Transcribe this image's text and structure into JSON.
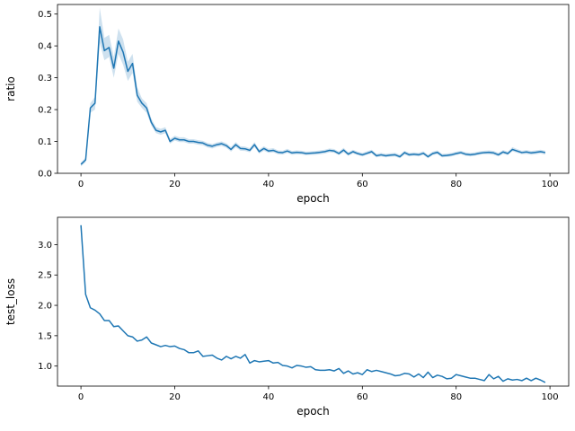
{
  "chart_data": [
    {
      "type": "line",
      "xlabel": "epoch",
      "ylabel": "ratio",
      "xlim": [
        -5,
        104
      ],
      "ylim": [
        0,
        0.53
      ],
      "xticks": [
        0,
        20,
        40,
        60,
        80,
        100
      ],
      "xtick_labels": [
        "0",
        "20",
        "40",
        "60",
        "80",
        "100"
      ],
      "yticks": [
        0.0,
        0.1,
        0.2,
        0.3,
        0.4,
        0.5
      ],
      "ytick_labels": [
        "0.0",
        "0.1",
        "0.2",
        "0.3",
        "0.4",
        "0.5"
      ],
      "grid": false,
      "confidence_band": true,
      "color": "#1f77b4",
      "band_color": "#1f77b4",
      "x": [
        0,
        1,
        2,
        3,
        4,
        5,
        6,
        7,
        8,
        9,
        10,
        11,
        12,
        13,
        14,
        15,
        16,
        17,
        18,
        19,
        20,
        21,
        22,
        23,
        24,
        25,
        26,
        27,
        28,
        29,
        30,
        31,
        32,
        33,
        34,
        35,
        36,
        37,
        38,
        39,
        40,
        41,
        42,
        43,
        44,
        45,
        46,
        47,
        48,
        49,
        50,
        51,
        52,
        53,
        54,
        55,
        56,
        57,
        58,
        59,
        60,
        61,
        62,
        63,
        64,
        65,
        66,
        67,
        68,
        69,
        70,
        71,
        72,
        73,
        74,
        75,
        76,
        77,
        78,
        79,
        80,
        81,
        82,
        83,
        84,
        85,
        86,
        87,
        88,
        89,
        90,
        91,
        92,
        93,
        94,
        95,
        96,
        97,
        98,
        99
      ],
      "values": [
        0.028,
        0.042,
        0.205,
        0.22,
        0.46,
        0.385,
        0.395,
        0.33,
        0.415,
        0.38,
        0.32,
        0.345,
        0.245,
        0.22,
        0.205,
        0.16,
        0.135,
        0.13,
        0.135,
        0.1,
        0.11,
        0.105,
        0.105,
        0.1,
        0.1,
        0.097,
        0.095,
        0.088,
        0.085,
        0.09,
        0.093,
        0.087,
        0.075,
        0.09,
        0.078,
        0.077,
        0.072,
        0.09,
        0.068,
        0.078,
        0.07,
        0.072,
        0.066,
        0.065,
        0.07,
        0.064,
        0.066,
        0.065,
        0.062,
        0.063,
        0.064,
        0.066,
        0.068,
        0.072,
        0.07,
        0.062,
        0.073,
        0.06,
        0.068,
        0.062,
        0.058,
        0.063,
        0.068,
        0.055,
        0.058,
        0.055,
        0.057,
        0.058,
        0.052,
        0.065,
        0.058,
        0.06,
        0.058,
        0.063,
        0.052,
        0.062,
        0.066,
        0.055,
        0.056,
        0.058,
        0.062,
        0.065,
        0.06,
        0.058,
        0.06,
        0.063,
        0.065,
        0.066,
        0.064,
        0.058,
        0.067,
        0.062,
        0.075,
        0.07,
        0.065,
        0.067,
        0.064,
        0.066,
        0.068,
        0.065
      ],
      "lower": [
        0.022,
        0.035,
        0.19,
        0.2,
        0.41,
        0.355,
        0.365,
        0.3,
        0.375,
        0.34,
        0.29,
        0.315,
        0.225,
        0.205,
        0.19,
        0.15,
        0.126,
        0.121,
        0.126,
        0.093,
        0.103,
        0.098,
        0.098,
        0.093,
        0.093,
        0.09,
        0.088,
        0.081,
        0.078,
        0.083,
        0.086,
        0.08,
        0.068,
        0.082,
        0.071,
        0.07,
        0.066,
        0.082,
        0.062,
        0.071,
        0.064,
        0.066,
        0.06,
        0.059,
        0.064,
        0.058,
        0.06,
        0.059,
        0.057,
        0.058,
        0.058,
        0.06,
        0.062,
        0.066,
        0.064,
        0.057,
        0.066,
        0.055,
        0.062,
        0.057,
        0.053,
        0.058,
        0.062,
        0.05,
        0.053,
        0.05,
        0.052,
        0.053,
        0.047,
        0.059,
        0.053,
        0.055,
        0.053,
        0.058,
        0.047,
        0.057,
        0.06,
        0.05,
        0.051,
        0.053,
        0.057,
        0.06,
        0.055,
        0.053,
        0.055,
        0.058,
        0.06,
        0.06,
        0.058,
        0.053,
        0.061,
        0.057,
        0.069,
        0.064,
        0.06,
        0.061,
        0.058,
        0.06,
        0.062,
        0.059
      ],
      "upper": [
        0.034,
        0.049,
        0.22,
        0.24,
        0.52,
        0.425,
        0.435,
        0.365,
        0.455,
        0.42,
        0.35,
        0.375,
        0.27,
        0.235,
        0.22,
        0.172,
        0.145,
        0.14,
        0.145,
        0.108,
        0.118,
        0.113,
        0.113,
        0.107,
        0.107,
        0.104,
        0.102,
        0.095,
        0.092,
        0.097,
        0.1,
        0.094,
        0.082,
        0.098,
        0.085,
        0.084,
        0.079,
        0.098,
        0.075,
        0.085,
        0.077,
        0.079,
        0.072,
        0.071,
        0.077,
        0.07,
        0.072,
        0.071,
        0.068,
        0.069,
        0.07,
        0.072,
        0.074,
        0.078,
        0.076,
        0.068,
        0.08,
        0.066,
        0.074,
        0.068,
        0.064,
        0.069,
        0.074,
        0.061,
        0.064,
        0.061,
        0.063,
        0.064,
        0.058,
        0.071,
        0.064,
        0.066,
        0.064,
        0.069,
        0.058,
        0.068,
        0.072,
        0.061,
        0.062,
        0.064,
        0.068,
        0.071,
        0.066,
        0.064,
        0.066,
        0.069,
        0.071,
        0.072,
        0.07,
        0.064,
        0.073,
        0.068,
        0.082,
        0.076,
        0.071,
        0.073,
        0.07,
        0.072,
        0.074,
        0.071
      ]
    },
    {
      "type": "line",
      "xlabel": "epoch",
      "ylabel": "test_loss",
      "xlim": [
        -5,
        104
      ],
      "ylim": [
        0.67,
        3.45
      ],
      "xticks": [
        0,
        20,
        40,
        60,
        80,
        100
      ],
      "xtick_labels": [
        "0",
        "20",
        "40",
        "60",
        "80",
        "100"
      ],
      "yticks": [
        1.0,
        1.5,
        2.0,
        2.5,
        3.0
      ],
      "ytick_labels": [
        "1.0",
        "1.5",
        "2.0",
        "2.5",
        "3.0"
      ],
      "grid": false,
      "color": "#1f77b4",
      "x": [
        0,
        1,
        2,
        3,
        4,
        5,
        6,
        7,
        8,
        9,
        10,
        11,
        12,
        13,
        14,
        15,
        16,
        17,
        18,
        19,
        20,
        21,
        22,
        23,
        24,
        25,
        26,
        27,
        28,
        29,
        30,
        31,
        32,
        33,
        34,
        35,
        36,
        37,
        38,
        39,
        40,
        41,
        42,
        43,
        44,
        45,
        46,
        47,
        48,
        49,
        50,
        51,
        52,
        53,
        54,
        55,
        56,
        57,
        58,
        59,
        60,
        61,
        62,
        63,
        64,
        65,
        66,
        67,
        68,
        69,
        70,
        71,
        72,
        73,
        74,
        75,
        76,
        77,
        78,
        79,
        80,
        81,
        82,
        83,
        84,
        85,
        86,
        87,
        88,
        89,
        90,
        91,
        92,
        93,
        94,
        95,
        96,
        97,
        98,
        99
      ],
      "values": [
        3.32,
        2.18,
        1.96,
        1.92,
        1.86,
        1.75,
        1.75,
        1.65,
        1.66,
        1.58,
        1.5,
        1.48,
        1.41,
        1.43,
        1.48,
        1.38,
        1.35,
        1.32,
        1.34,
        1.32,
        1.33,
        1.29,
        1.27,
        1.22,
        1.22,
        1.25,
        1.16,
        1.17,
        1.18,
        1.13,
        1.1,
        1.16,
        1.12,
        1.16,
        1.13,
        1.19,
        1.05,
        1.09,
        1.07,
        1.08,
        1.09,
        1.05,
        1.06,
        1.01,
        1.0,
        0.97,
        1.01,
        1.0,
        0.98,
        0.99,
        0.94,
        0.93,
        0.93,
        0.94,
        0.92,
        0.96,
        0.88,
        0.92,
        0.87,
        0.89,
        0.86,
        0.94,
        0.91,
        0.93,
        0.91,
        0.89,
        0.87,
        0.84,
        0.85,
        0.88,
        0.87,
        0.82,
        0.87,
        0.81,
        0.9,
        0.81,
        0.85,
        0.83,
        0.79,
        0.8,
        0.86,
        0.84,
        0.82,
        0.8,
        0.8,
        0.78,
        0.76,
        0.86,
        0.79,
        0.83,
        0.75,
        0.79,
        0.77,
        0.78,
        0.76,
        0.8,
        0.76,
        0.8,
        0.77,
        0.73
      ]
    }
  ]
}
